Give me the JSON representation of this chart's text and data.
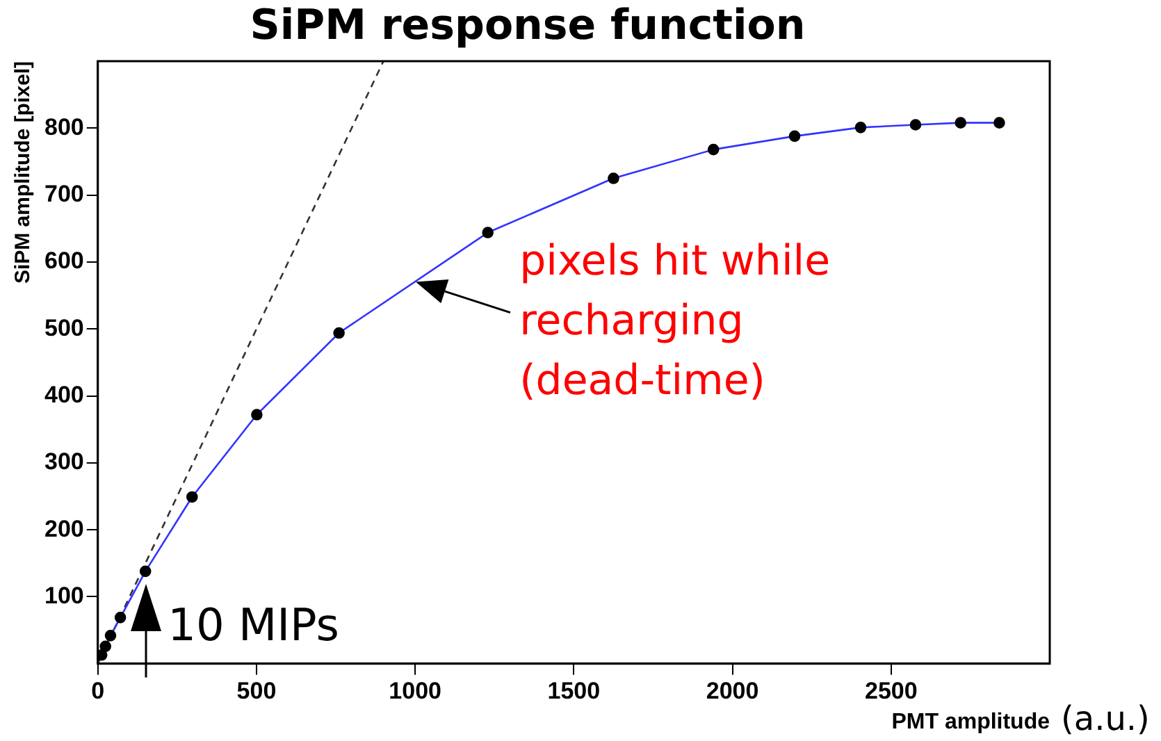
{
  "chart_data": {
    "type": "line",
    "title": "SiPM response function",
    "xlabel": "PMT amplitude",
    "ylabel": "SiPM amplitude [pixel]",
    "xlim": [
      0,
      3000
    ],
    "xticks": [
      0,
      500,
      1000,
      1500,
      2000,
      2500
    ],
    "ylim": [
      0,
      900
    ],
    "yticks": [
      100,
      200,
      300,
      400,
      500,
      600,
      700,
      800
    ],
    "grid": false,
    "legend": false,
    "series": [
      {
        "type": "line",
        "color": "#3333ff",
        "marker": "circle",
        "line_style": "solid",
        "x": [
          12,
          24,
          40,
          71,
          150,
          297,
          501,
          760,
          1229,
          1625,
          1940,
          2196,
          2404,
          2577,
          2719,
          2841
        ],
        "values": [
          13,
          26,
          42,
          69,
          138,
          249,
          372,
          494,
          644,
          725,
          768,
          788,
          801,
          805,
          808,
          808
        ]
      },
      {
        "type": "line",
        "color": "#333333",
        "marker": "none",
        "line_style": "dashed",
        "x": [
          0,
          900
        ],
        "values": [
          0,
          900
        ]
      }
    ],
    "annotations": [
      {
        "text": "pixels hit while recharging (dead-time)",
        "x": 1000,
        "y": 570
      },
      {
        "text": "10 MIPs",
        "x": 150,
        "y": 119
      },
      "(a.u.)"
    ]
  }
}
